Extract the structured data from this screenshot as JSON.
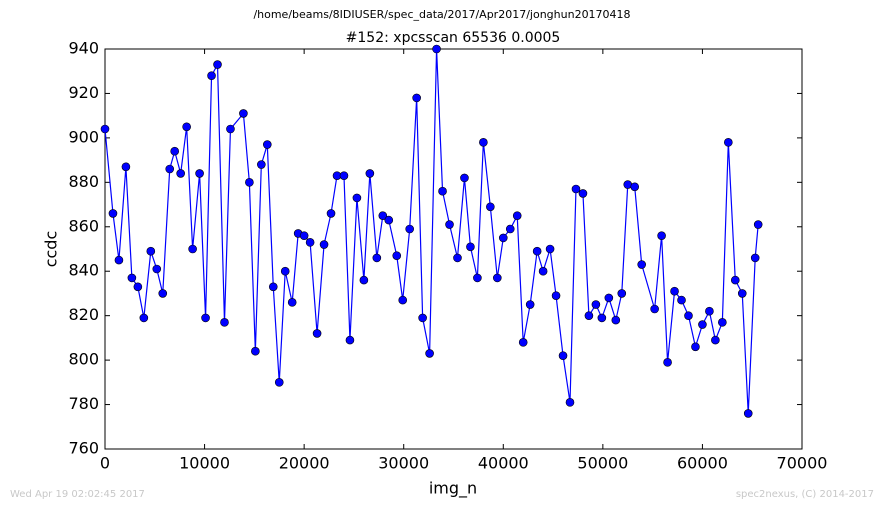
{
  "chart_data": {
    "type": "line",
    "suptitle": "/home/beams/8IDIUSER/spec_data/2017/Apr2017/jonghun20170418",
    "title": "#152: xpcsscan 65536 0.0005",
    "x_label": "img_n",
    "y_label": "ccdc",
    "footer_left": "Wed Apr 19 02:02:45 2017",
    "footer_right": "spec2nexus, (C) 2014-2017",
    "color": "#0000ff",
    "x": [
      0,
      800,
      1400,
      2100,
      2700,
      3300,
      3900,
      4600,
      5200,
      5800,
      6500,
      7000,
      7600,
      8200,
      8800,
      9500,
      10100,
      10700,
      11300,
      12000,
      12600,
      13900,
      14500,
      15100,
      15700,
      16300,
      16900,
      17500,
      18100,
      18800,
      19400,
      20000,
      20600,
      21300,
      22000,
      22700,
      23300,
      24000,
      24600,
      25300,
      26000,
      26600,
      27300,
      27900,
      28500,
      29300,
      29900,
      30600,
      31300,
      31900,
      32600,
      33300,
      33900,
      34600,
      35400,
      36100,
      36700,
      37400,
      38000,
      38700,
      39400,
      40000,
      40700,
      41400,
      42000,
      42700,
      43400,
      44000,
      44700,
      45300,
      46000,
      46700,
      47300,
      48000,
      48600,
      49300,
      49900,
      50600,
      51300,
      51900,
      52500,
      53200,
      53900,
      55200,
      55900,
      56500,
      57200,
      57900,
      58600,
      59300,
      60000,
      60700,
      61300,
      62000,
      62600,
      63300,
      64000,
      64600,
      65300,
      65600
    ],
    "values": [
      904,
      866,
      845,
      887,
      837,
      833,
      819,
      849,
      841,
      830,
      886,
      894,
      884,
      905,
      850,
      884,
      819,
      928,
      933,
      817,
      904,
      911,
      880,
      804,
      888,
      897,
      833,
      790,
      840,
      826,
      857,
      856,
      853,
      812,
      852,
      866,
      883,
      883,
      809,
      873,
      836,
      884,
      846,
      865,
      863,
      847,
      827,
      859,
      918,
      819,
      803,
      940,
      876,
      861,
      846,
      882,
      851,
      837,
      898,
      869,
      837,
      855,
      859,
      865,
      808,
      825,
      849,
      840,
      850,
      829,
      802,
      781,
      877,
      875,
      820,
      825,
      819,
      828,
      818,
      830,
      879,
      878,
      843,
      823,
      856,
      799,
      831,
      827,
      820,
      806,
      816,
      822,
      809,
      817,
      898,
      836,
      830,
      776,
      846,
      861
    ],
    "xlim": [
      0,
      70000
    ],
    "ylim": [
      760,
      940
    ],
    "xticks": [
      0,
      10000,
      20000,
      30000,
      40000,
      50000,
      60000,
      70000
    ],
    "yticks": [
      760,
      780,
      800,
      820,
      840,
      860,
      880,
      900,
      920,
      940
    ]
  }
}
